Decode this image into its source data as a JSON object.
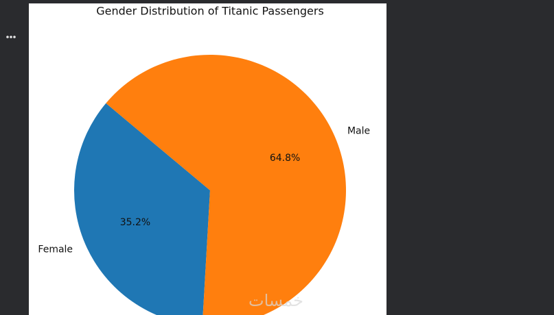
{
  "chart_data": {
    "type": "pie",
    "title": "Gender Distribution of Titanic Passengers",
    "categories": [
      "Female",
      "Male"
    ],
    "values": [
      35.2,
      64.8
    ],
    "value_labels": [
      "35.2%",
      "64.8%"
    ],
    "colors": [
      "#1f77b4",
      "#ff7f0e"
    ]
  },
  "watermark": "خمسات"
}
